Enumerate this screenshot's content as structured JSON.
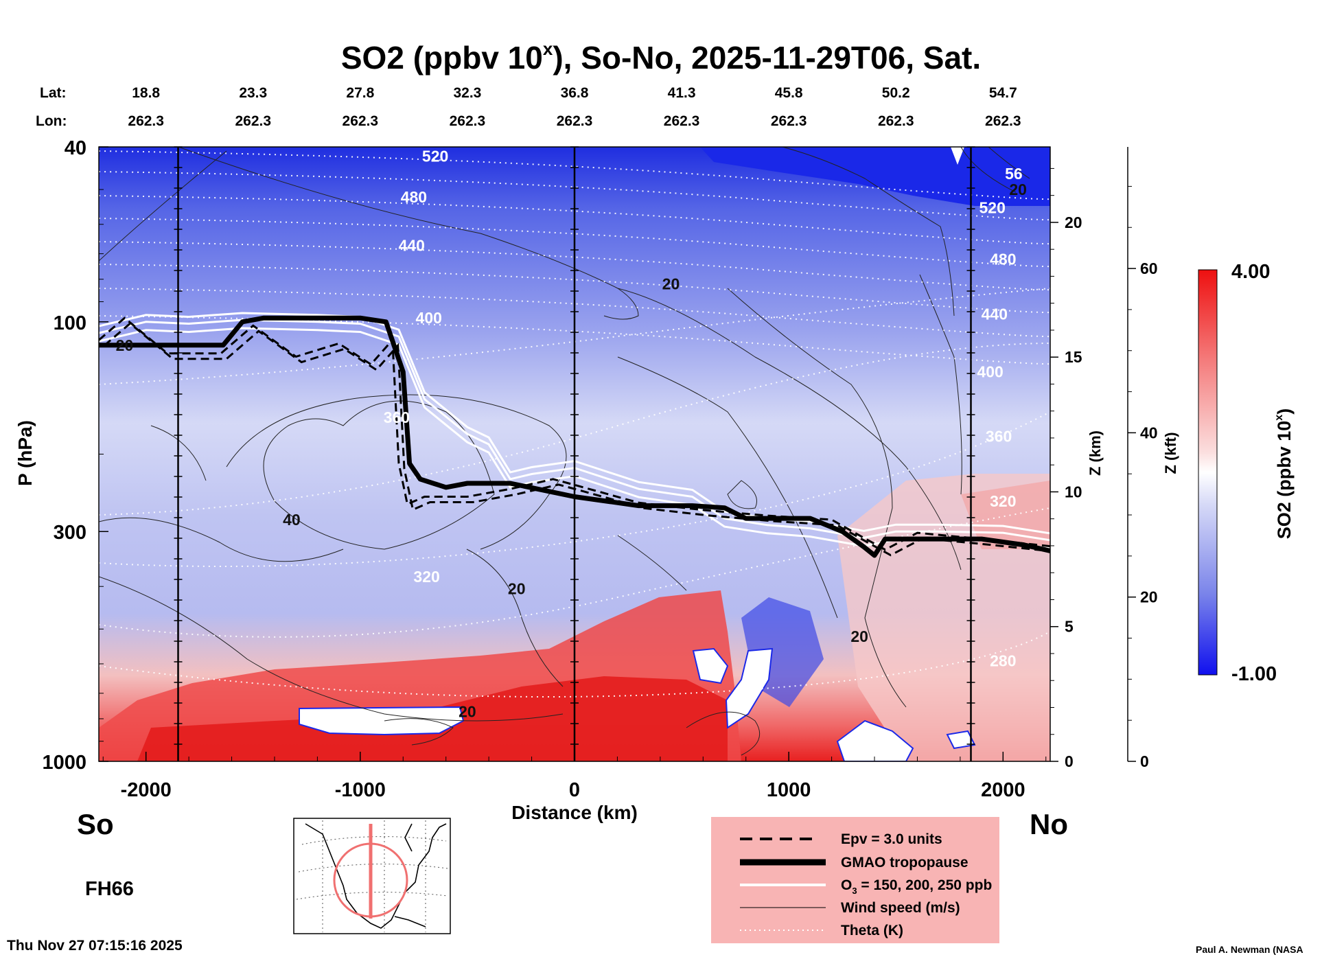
{
  "chart_data": {
    "type": "heatmap",
    "title": "SO2 (ppbv 10",
    "title_sup": "x",
    "title_suffix": "), So-No, 2025-11-29T06, Sat.",
    "xlabel": "Distance (km)",
    "ylabel": "P (hPa)",
    "y2label": "Z (km)",
    "y3label": "Z (kft)",
    "x_range": [
      -2220,
      2220
    ],
    "y_range_hpa": [
      1000,
      40
    ],
    "x_ticks": [
      -2000,
      -1000,
      0,
      1000,
      2000
    ],
    "x_tick_labels": [
      "-2000",
      "-1000",
      "0",
      "1000",
      "2000"
    ],
    "y_ticks_hpa": [
      40,
      100,
      300,
      1000
    ],
    "y_tick_labels": [
      "40",
      "100",
      "300",
      "1000"
    ],
    "z_km_ticks": [
      0,
      5,
      10,
      15,
      20
    ],
    "z_km_labels": [
      "0",
      "5",
      "10",
      "15",
      "20"
    ],
    "z_kft_ticks": [
      0,
      20,
      40,
      60
    ],
    "z_kft_labels": [
      "0",
      "20",
      "40",
      "60"
    ],
    "lat_label": "Lat:",
    "lon_label": "Lon:",
    "latitudes": [
      "18.8",
      "23.3",
      "27.8",
      "32.3",
      "36.8",
      "41.3",
      "45.8",
      "50.2",
      "54.7"
    ],
    "longitudes": [
      "262.3",
      "262.3",
      "262.3",
      "262.3",
      "262.3",
      "262.3",
      "262.3",
      "262.3",
      "262.3"
    ],
    "station_km": [
      -2000,
      -1500,
      -1000,
      -500,
      0,
      500,
      1000,
      1500,
      2000
    ],
    "vertical_lines_km": [
      -1850,
      0,
      1850
    ],
    "colorbar": {
      "label": "SO2 (ppbv 10",
      "label_sup": "x",
      "max": "4.00",
      "min": "-1.00",
      "low_color": "#1010ee",
      "mid_color": "#ffffff",
      "high_color": "#ee1010"
    },
    "theta_labels": [
      {
        "text": "520",
        "km": -650,
        "hpa": 42
      },
      {
        "text": "480",
        "km": -750,
        "hpa": 52
      },
      {
        "text": "440",
        "km": -760,
        "hpa": 67
      },
      {
        "text": "400",
        "km": -680,
        "hpa": 98
      },
      {
        "text": "360",
        "km": -830,
        "hpa": 165
      },
      {
        "text": "320",
        "km": -690,
        "hpa": 380
      },
      {
        "text": "56",
        "km": 2050,
        "hpa": 46
      },
      {
        "text": "520",
        "km": 1950,
        "hpa": 55
      },
      {
        "text": "480",
        "km": 2000,
        "hpa": 72
      },
      {
        "text": "440",
        "km": 1960,
        "hpa": 96
      },
      {
        "text": "400",
        "km": 1940,
        "hpa": 130
      },
      {
        "text": "360",
        "km": 1980,
        "hpa": 182
      },
      {
        "text": "320",
        "km": 2000,
        "hpa": 256
      },
      {
        "text": "280",
        "km": 2000,
        "hpa": 590
      }
    ],
    "wind_labels": [
      {
        "text": "20",
        "km": -2100,
        "hpa": 113
      },
      {
        "text": "20",
        "km": 450,
        "hpa": 82
      },
      {
        "text": "40",
        "km": -1320,
        "hpa": 282
      },
      {
        "text": "20",
        "km": -270,
        "hpa": 405
      },
      {
        "text": "20",
        "km": -500,
        "hpa": 770
      },
      {
        "text": "20",
        "km": 1330,
        "hpa": 520
      },
      {
        "text": "20",
        "km": 2070,
        "hpa": 50
      }
    ],
    "tropopause_hpa": {
      "km": [
        -2220,
        -1640,
        -1550,
        -1450,
        -1000,
        -880,
        -800,
        -770,
        -720,
        -600,
        -500,
        -300,
        0,
        300,
        550,
        700,
        800,
        1000,
        1100,
        1250,
        1350,
        1400,
        1450,
        1600,
        1900,
        2100,
        2220
      ],
      "hpa": [
        113,
        113,
        100,
        98,
        98,
        100,
        130,
        210,
        228,
        238,
        233,
        233,
        250,
        262,
        262,
        265,
        280,
        280,
        280,
        300,
        325,
        340,
        312,
        312,
        312,
        322,
        332
      ]
    },
    "epv_hpa": {
      "km": [
        -2220,
        -2100,
        -1900,
        -1650,
        -1500,
        -1300,
        -1100,
        -950,
        -850,
        -820,
        -780,
        -700,
        -500,
        -300,
        -100,
        0,
        300,
        600,
        900,
        1200,
        1350,
        1450,
        1600,
        1900,
        2220
      ],
      "hpa": [
        110,
        98,
        118,
        118,
        102,
        120,
        112,
        125,
        110,
        210,
        260,
        250,
        250,
        240,
        228,
        235,
        258,
        268,
        276,
        282,
        310,
        330,
        302,
        312,
        324
      ]
    },
    "ozone_hpa": {
      "km": [
        -2220,
        -2000,
        -1800,
        -1550,
        -1200,
        -1000,
        -820,
        -700,
        -500,
        -400,
        -300,
        -200,
        0,
        300,
        550,
        700,
        900,
        1100,
        1350,
        1500,
        1700,
        2000,
        2220
      ],
      "hpa": [
        106,
        100,
        101,
        99,
        100,
        101,
        108,
        150,
        180,
        190,
        228,
        222,
        215,
        240,
        250,
        280,
        290,
        295,
        310,
        300,
        300,
        302,
        314
      ]
    },
    "legend": [
      {
        "label": "Epv = 3.0 units",
        "style": "dashed"
      },
      {
        "label": "GMAO tropopause",
        "style": "thick"
      },
      {
        "label": "O",
        "sub": "3",
        "rest": " = 150, 200, 250 ppb",
        "style": "white"
      },
      {
        "label": "Wind speed (m/s)",
        "style": "thin"
      },
      {
        "label": "Theta (K)",
        "style": "dotted"
      }
    ],
    "legend_bg": "#f8b4b4",
    "annotations": {
      "south": "So",
      "north": "No",
      "forecast_hour": "FH66",
      "timestamp": "Thu Nov 27 07:15:16 2025",
      "credit": "Paul A. Newman (NASA"
    }
  }
}
